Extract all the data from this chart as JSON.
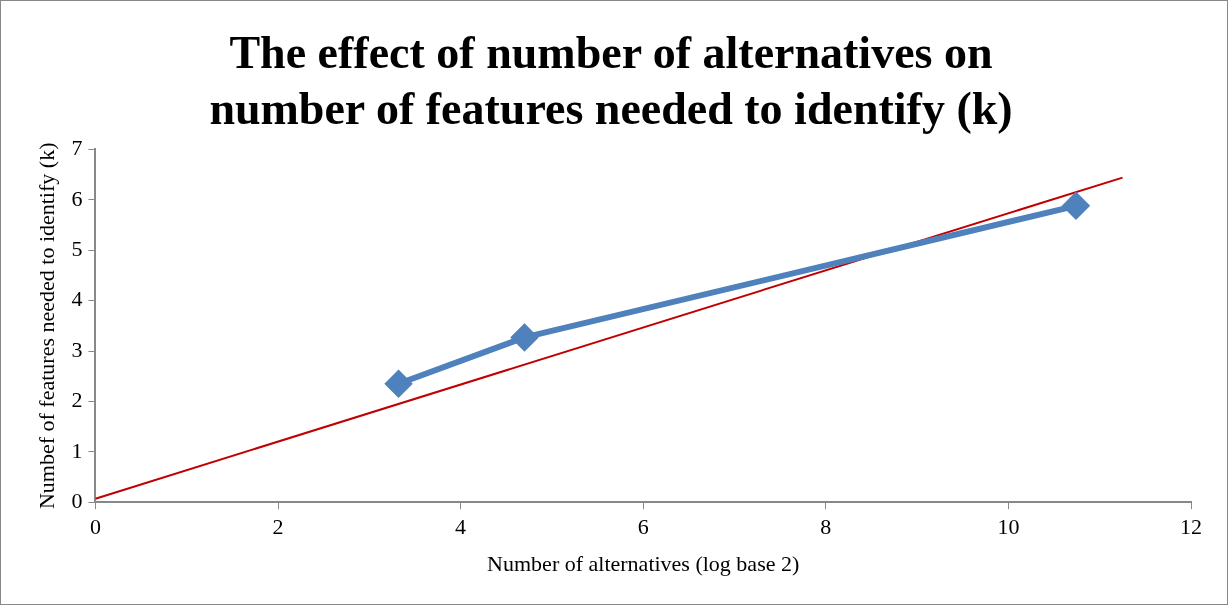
{
  "chart_data": {
    "type": "line",
    "title": "The effect of number of alternatives on number of features needed to identify (k)",
    "xlabel": "Number of alternatives (log base 2)",
    "ylabel": "Numbef of features needed to identify (k)",
    "x": [
      3.32,
      4.7,
      10.74
    ],
    "series": [
      {
        "color": "#4f81bd",
        "values": [
          2.35,
          3.27,
          5.88
        ],
        "marker": "diamond"
      },
      {
        "type": "line",
        "color": "#c00000",
        "x": [
          0,
          11.25
        ],
        "values": [
          0.07,
          6.44
        ],
        "marker": "none"
      }
    ],
    "xlim": [
      0,
      12
    ],
    "xticks": [
      0,
      2,
      4,
      6,
      8,
      10,
      12
    ],
    "ylim": [
      0,
      7
    ],
    "yticks": [
      0,
      1,
      2,
      3,
      4,
      5,
      6,
      7
    ],
    "grid": false,
    "legend": false
  }
}
